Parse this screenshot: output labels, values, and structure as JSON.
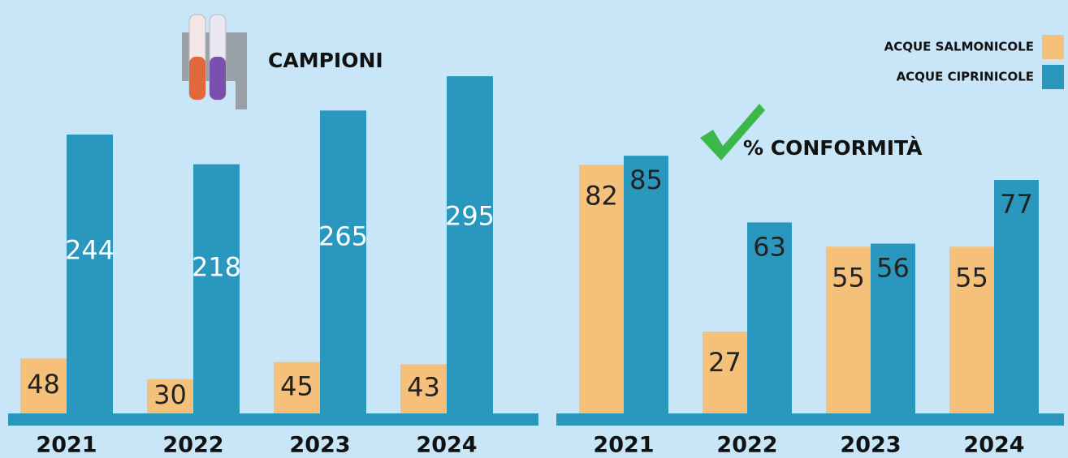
{
  "chart_data": [
    {
      "type": "bar",
      "title": "CAMPIONI",
      "categories": [
        "2021",
        "2022",
        "2023",
        "2024"
      ],
      "series": [
        {
          "name": "ACQUE SALMONICOLE",
          "color": "#f5c07a",
          "values": [
            48,
            30,
            45,
            43
          ]
        },
        {
          "name": "ACQUE CIPRINICOLE",
          "color": "#2a97bf",
          "values": [
            244,
            218,
            265,
            295
          ]
        }
      ]
    },
    {
      "type": "bar",
      "title": "% CONFORMITÀ",
      "categories": [
        "2021",
        "2022",
        "2023",
        "2024"
      ],
      "series": [
        {
          "color": "#f5c07a",
          "values": [
            82,
            27,
            55,
            55
          ]
        },
        {
          "color": "#2a97bf",
          "values": [
            85,
            63,
            56,
            77
          ]
        }
      ]
    }
  ]
}
